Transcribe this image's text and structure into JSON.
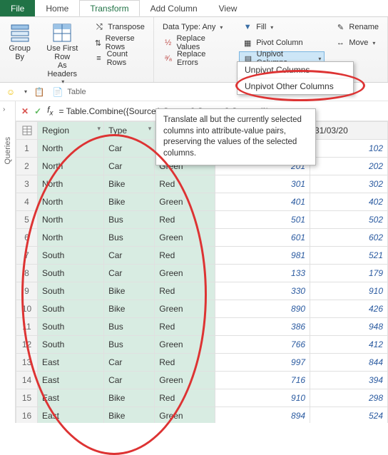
{
  "tabs": {
    "file": "File",
    "home": "Home",
    "transform": "Transform",
    "addcol": "Add Column",
    "view": "View"
  },
  "ribbon": {
    "groupby": "Group\nBy",
    "firstrow": "Use First Row\nAs Headers",
    "transpose": "Transpose",
    "reverse": "Reverse Rows",
    "count": "Count Rows",
    "grouplabel": "Table",
    "datatype": "Data Type: Any",
    "replacevalues": "Replace Values",
    "replaceerrors": "Replace Errors",
    "fill": "Fill",
    "pivot": "Pivot Column",
    "unpivot": "Unpivot Columns",
    "rename": "Rename",
    "move": "Move"
  },
  "dropdown": {
    "a": "Unpivot Columns",
    "b": "Unpivot Other Columns"
  },
  "tooltip": "Translate all but the currently selected columns into attribute-value pairs, preserving the values of the selected columns.",
  "sidebar": "Queries",
  "formula": "= Table.Combine({Source1,Source2,Source3,Source4})",
  "columns": {
    "region": "Region",
    "type": "Type",
    "c3": "",
    "d1": "31/01/2015",
    "d2": "31/03/20"
  },
  "rows": [
    {
      "n": "1",
      "r": "North",
      "t": "Car",
      "c": "Red",
      "v1": "101",
      "v2": "102"
    },
    {
      "n": "2",
      "r": "North",
      "t": "Car",
      "c": "Green",
      "v1": "201",
      "v2": "202"
    },
    {
      "n": "3",
      "r": "North",
      "t": "Bike",
      "c": "Red",
      "v1": "301",
      "v2": "302"
    },
    {
      "n": "4",
      "r": "North",
      "t": "Bike",
      "c": "Green",
      "v1": "401",
      "v2": "402"
    },
    {
      "n": "5",
      "r": "North",
      "t": "Bus",
      "c": "Red",
      "v1": "501",
      "v2": "502"
    },
    {
      "n": "6",
      "r": "North",
      "t": "Bus",
      "c": "Green",
      "v1": "601",
      "v2": "602"
    },
    {
      "n": "7",
      "r": "South",
      "t": "Car",
      "c": "Red",
      "v1": "981",
      "v2": "521"
    },
    {
      "n": "8",
      "r": "South",
      "t": "Car",
      "c": "Green",
      "v1": "133",
      "v2": "179"
    },
    {
      "n": "9",
      "r": "South",
      "t": "Bike",
      "c": "Red",
      "v1": "330",
      "v2": "910"
    },
    {
      "n": "10",
      "r": "South",
      "t": "Bike",
      "c": "Green",
      "v1": "890",
      "v2": "426"
    },
    {
      "n": "11",
      "r": "South",
      "t": "Bus",
      "c": "Red",
      "v1": "386",
      "v2": "948"
    },
    {
      "n": "12",
      "r": "South",
      "t": "Bus",
      "c": "Green",
      "v1": "766",
      "v2": "412"
    },
    {
      "n": "13",
      "r": "East",
      "t": "Car",
      "c": "Red",
      "v1": "997",
      "v2": "844"
    },
    {
      "n": "14",
      "r": "East",
      "t": "Car",
      "c": "Green",
      "v1": "716",
      "v2": "394"
    },
    {
      "n": "15",
      "r": "East",
      "t": "Bike",
      "c": "Red",
      "v1": "910",
      "v2": "298"
    },
    {
      "n": "16",
      "r": "East",
      "t": "Bike",
      "c": "Green",
      "v1": "894",
      "v2": "524"
    }
  ],
  "colors": {
    "accent": "#217346",
    "highlight": "#d33",
    "selbg": "#d8ece2"
  }
}
